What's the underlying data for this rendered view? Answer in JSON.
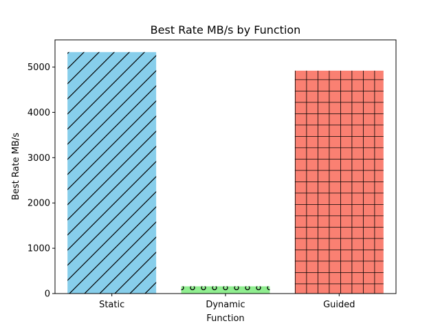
{
  "chart_data": {
    "type": "bar",
    "title": "Best Rate MB/s by Function",
    "xlabel": "Function",
    "ylabel": "Best Rate MB/s",
    "categories": [
      "Static",
      "Dynamic",
      "Guided"
    ],
    "values": [
      5330,
      160,
      4920
    ],
    "colors": [
      "#87CEEB",
      "#90EE90",
      "#FA8072"
    ],
    "hatches": [
      "diagonal",
      "circles",
      "grid"
    ],
    "ylim": [
      0,
      5600
    ],
    "yticks": [
      0,
      1000,
      2000,
      3000,
      4000,
      5000
    ],
    "grid": false,
    "legend": "none"
  }
}
